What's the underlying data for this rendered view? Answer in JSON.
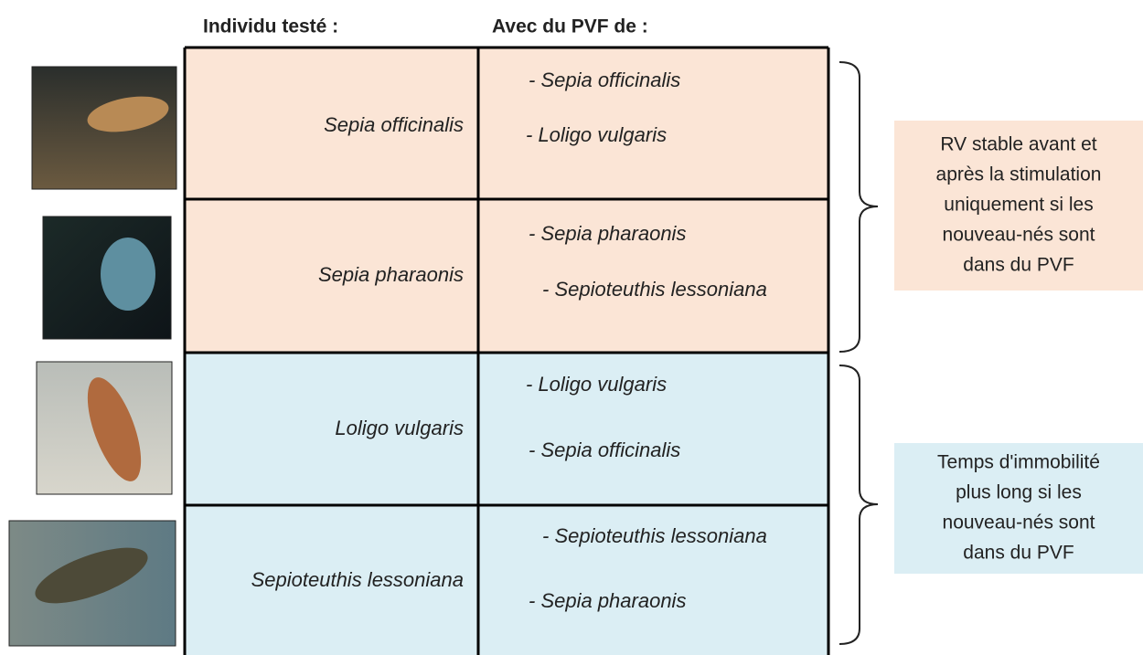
{
  "header": {
    "tested": "Individu testé :",
    "pvf": "Avec du PVF de :"
  },
  "table": {
    "rows": [
      {
        "tested": "Sepia officinalis",
        "pvf": [
          "- Sepia officinalis",
          "- Loligo vulgaris"
        ]
      },
      {
        "tested": "Sepia pharaonis",
        "pvf": [
          "- Sepia pharaonis",
          "- Sepioteuthis lessoniana"
        ]
      },
      {
        "tested": "Loligo vulgaris",
        "pvf": [
          "- Loligo vulgaris",
          "- Sepia officinalis"
        ]
      },
      {
        "tested": "Sepioteuthis lessoniana",
        "pvf": [
          "- Sepioteuthis lessoniana",
          "- Sepia pharaonis"
        ]
      }
    ]
  },
  "notes": [
    {
      "lines": [
        "RV stable avant et",
        "après la stimulation",
        "uniquement si les",
        "nouveau-nés sont",
        "dans du PVF"
      ]
    },
    {
      "lines": [
        "Temps d'immobilité",
        "plus long si les",
        "nouveau-nés sont",
        "dans du PVF"
      ]
    }
  ]
}
